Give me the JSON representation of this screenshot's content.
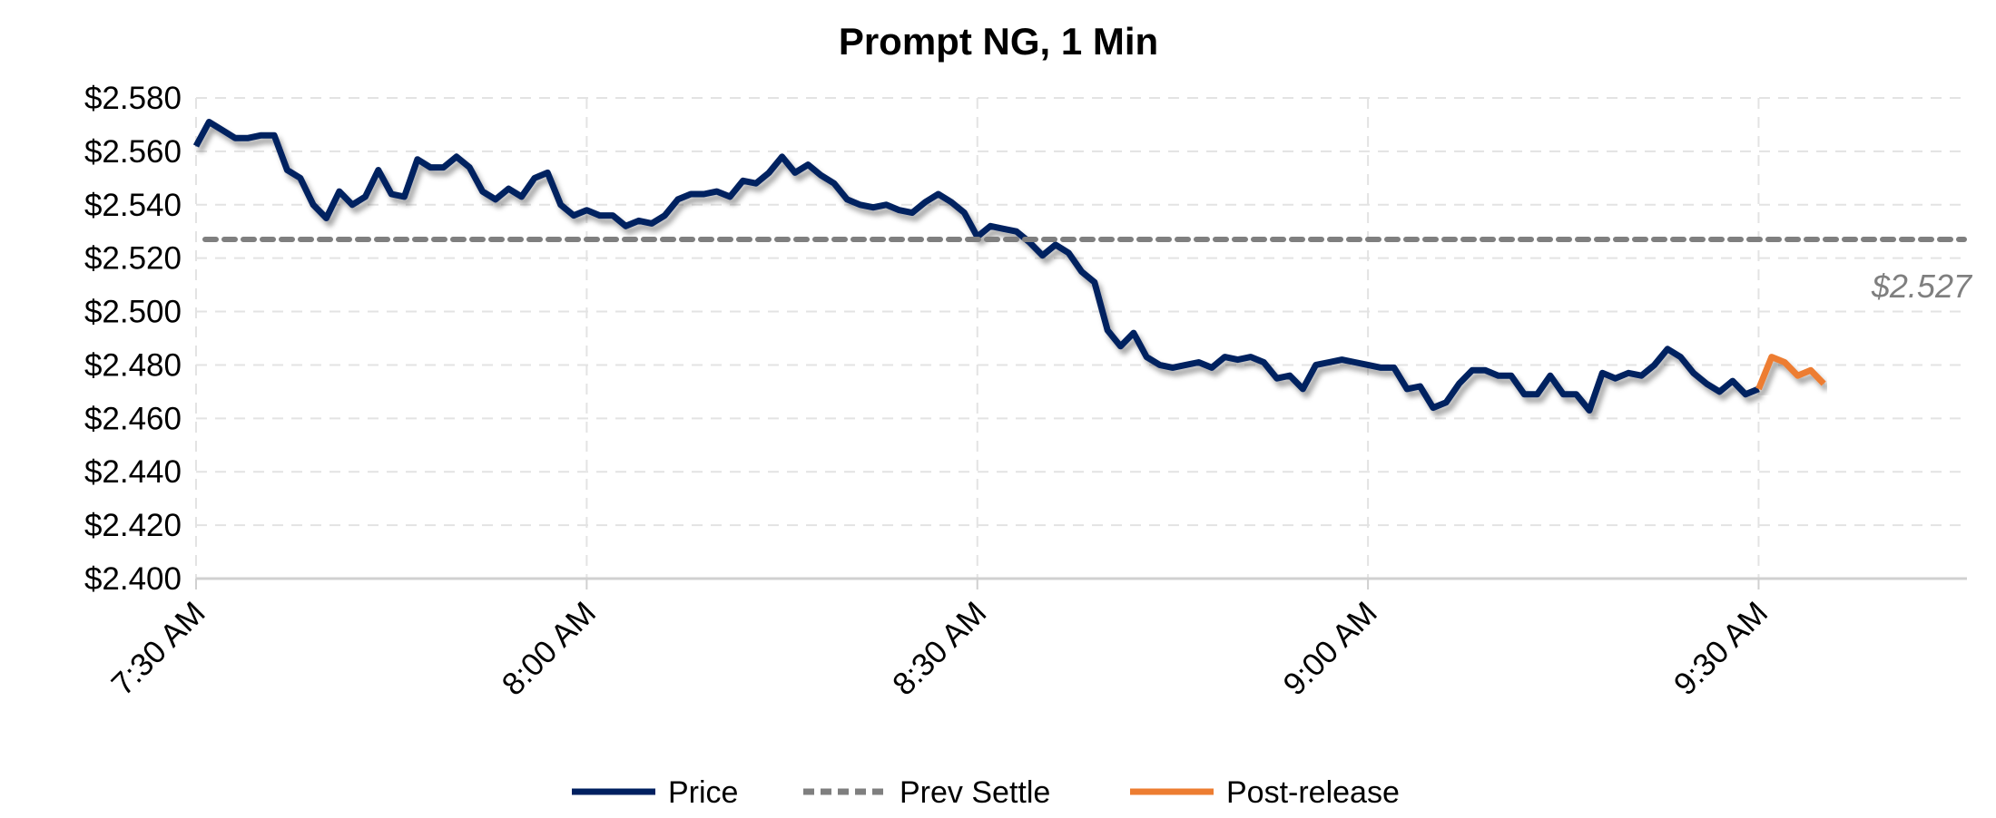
{
  "chart_data": {
    "type": "line",
    "title": "Prompt NG, 1 Min",
    "xlabel": "",
    "ylabel": "",
    "ylim": [
      2.4,
      2.58
    ],
    "y_ticks": [
      "$2.580",
      "$2.560",
      "$2.540",
      "$2.520",
      "$2.500",
      "$2.480",
      "$2.460",
      "$2.440",
      "$2.420",
      "$2.400"
    ],
    "y_tick_values": [
      2.58,
      2.56,
      2.54,
      2.52,
      2.5,
      2.48,
      2.46,
      2.44,
      2.42,
      2.4
    ],
    "x_unit": "minutes after 7:30 AM",
    "xlim": [
      0,
      136
    ],
    "x_ticks": [
      "7:30 AM",
      "8:00 AM",
      "8:30 AM",
      "9:00 AM",
      "9:30 AM"
    ],
    "x_tick_values": [
      0,
      30,
      60,
      90,
      120
    ],
    "grid": true,
    "legend_placement": "bottom",
    "series": [
      {
        "name": "Price",
        "color": "#002060",
        "style": "solid",
        "x_start": 0,
        "values": [
          2.562,
          2.571,
          2.568,
          2.565,
          2.565,
          2.566,
          2.566,
          2.553,
          2.55,
          2.54,
          2.535,
          2.545,
          2.54,
          2.543,
          2.553,
          2.544,
          2.543,
          2.557,
          2.554,
          2.554,
          2.558,
          2.554,
          2.545,
          2.542,
          2.546,
          2.543,
          2.55,
          2.552,
          2.54,
          2.536,
          2.538,
          2.536,
          2.536,
          2.532,
          2.534,
          2.533,
          2.536,
          2.542,
          2.544,
          2.544,
          2.545,
          2.543,
          2.549,
          2.548,
          2.552,
          2.558,
          2.552,
          2.555,
          2.551,
          2.548,
          2.542,
          2.54,
          2.539,
          2.54,
          2.538,
          2.537,
          2.541,
          2.544,
          2.541,
          2.537,
          2.528,
          2.532,
          2.531,
          2.53,
          2.526,
          2.521,
          2.525,
          2.522,
          2.515,
          2.511,
          2.493,
          2.487,
          2.492,
          2.483,
          2.48,
          2.479,
          2.48,
          2.481,
          2.479,
          2.483,
          2.482,
          2.483,
          2.481,
          2.475,
          2.476,
          2.471,
          2.48,
          2.481,
          2.482,
          2.481,
          2.48,
          2.479,
          2.479,
          2.471,
          2.472,
          2.464,
          2.466,
          2.473,
          2.478,
          2.478,
          2.476,
          2.476,
          2.469,
          2.469,
          2.476,
          2.469,
          2.469,
          2.463,
          2.477,
          2.475,
          2.477,
          2.476,
          2.48,
          2.486,
          2.483,
          2.477,
          2.473,
          2.47,
          2.474,
          2.469,
          2.471
        ]
      },
      {
        "name": "Prev Settle",
        "color": "#7f7f7f",
        "style": "dashed",
        "constant": 2.527
      },
      {
        "name": "Post-release",
        "color": "#ed7d31",
        "style": "solid",
        "x_start": 120,
        "values": [
          2.471,
          2.483,
          2.481,
          2.476,
          2.478,
          2.473
        ]
      }
    ],
    "annotations": [
      {
        "text": "$2.527",
        "refers_to": "Prev Settle"
      }
    ]
  }
}
